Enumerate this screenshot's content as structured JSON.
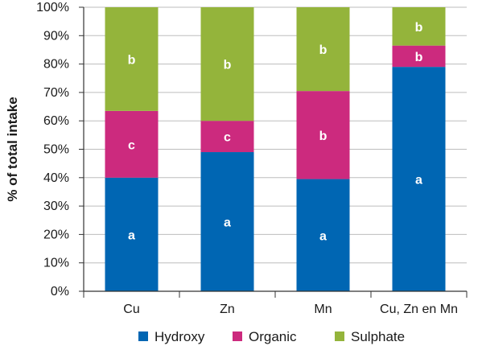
{
  "chart_data": {
    "type": "bar",
    "stacked": true,
    "categories": [
      "Cu",
      "Zn",
      "Mn",
      "Cu, Zn en Mn"
    ],
    "series": [
      {
        "name": "Hydroxy",
        "color": "#0066b3",
        "values": [
          40,
          49,
          39.5,
          79
        ],
        "labels": [
          "a",
          "a",
          "a",
          "a"
        ]
      },
      {
        "name": "Organic",
        "color": "#cc2a7e",
        "values": [
          23.5,
          11,
          31,
          7.5
        ],
        "labels": [
          "c",
          "c",
          "b",
          "b"
        ]
      },
      {
        "name": "Sulphate",
        "color": "#94b43b",
        "values": [
          36.5,
          40,
          29.5,
          13.5
        ],
        "labels": [
          "b",
          "b",
          "b",
          "b"
        ]
      }
    ],
    "ylabel": "% of total intake",
    "xlabel": "",
    "ylim": [
      0,
      100
    ],
    "ytick_labels": [
      "0%",
      "10%",
      "20%",
      "30%",
      "40%",
      "50%",
      "60%",
      "70%",
      "80%",
      "90%",
      "100%"
    ],
    "grid": true,
    "legend": "bottom"
  }
}
